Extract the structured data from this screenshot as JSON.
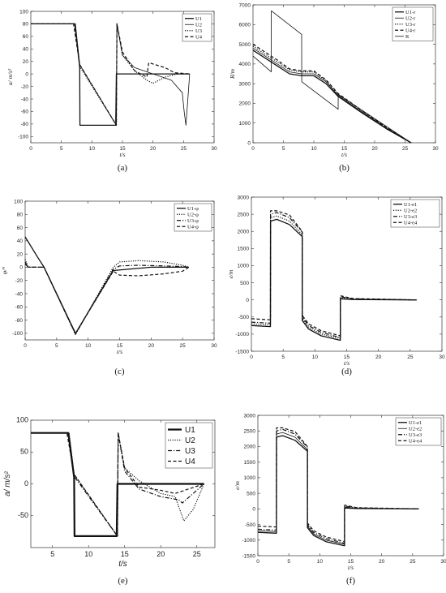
{
  "chart_data": [
    {
      "id": "a",
      "type": "line",
      "caption": "(a)",
      "xlabel": "t/s",
      "ylabel": "a/ m/s²",
      "xlim": [
        0,
        30
      ],
      "ylim": [
        -110,
        100
      ],
      "xticks": [
        0,
        5,
        10,
        15,
        20,
        25,
        30
      ],
      "yticks": [
        -100,
        -80,
        -60,
        -40,
        -20,
        0,
        20,
        40,
        60,
        80,
        100
      ],
      "legend": {
        "position": "top-right",
        "entries": [
          "U1",
          "U2",
          "U3",
          "U4"
        ]
      },
      "series": [
        {
          "name": "U1",
          "style": "solid",
          "x": [
            0,
            7.2,
            7.9,
            8.0,
            8.05,
            13.9,
            14.0,
            14.05,
            26
          ],
          "y": [
            80,
            80,
            20,
            10,
            -82,
            -82,
            0,
            0,
            0
          ]
        },
        {
          "name": "U2",
          "style": "solid-thin",
          "x": [
            0,
            7.3,
            8.0,
            14.0,
            14.1,
            15,
            17,
            20,
            23,
            24.8,
            25.1,
            25.4,
            26
          ],
          "y": [
            80,
            80,
            15,
            -82,
            80,
            30,
            10,
            0,
            -10,
            -30,
            -60,
            -82,
            0
          ]
        },
        {
          "name": "U3",
          "style": "dotted",
          "x": [
            0,
            7.2,
            8.0,
            14.0,
            14.1,
            15,
            17,
            19,
            20,
            22,
            24,
            26
          ],
          "y": [
            80,
            80,
            12,
            -82,
            80,
            30,
            5,
            -10,
            -15,
            -5,
            0,
            0
          ]
        },
        {
          "name": "U4",
          "style": "dashed",
          "x": [
            0,
            7.0,
            8.0,
            14.0,
            14.1,
            15,
            17,
            19,
            19.3,
            22,
            23.5,
            26
          ],
          "y": [
            80,
            80,
            15,
            -82,
            80,
            35,
            5,
            -5,
            18,
            10,
            2,
            0
          ]
        }
      ]
    },
    {
      "id": "b",
      "type": "line",
      "caption": "(b)",
      "xlabel": "t/s",
      "ylabel": "R/m",
      "xlim": [
        0,
        30
      ],
      "ylim": [
        0,
        7000
      ],
      "xticks": [
        0,
        5,
        10,
        15,
        20,
        25,
        30
      ],
      "yticks": [
        0,
        1000,
        2000,
        3000,
        4000,
        5000,
        6000,
        7000
      ],
      "legend": {
        "position": "top-right",
        "entries": [
          "U1-r",
          "U2-r",
          "U3-r",
          "U4-r",
          "R"
        ]
      },
      "series": [
        {
          "name": "U1-r",
          "style": "solid",
          "x": [
            0,
            2,
            4,
            6,
            8,
            10,
            12,
            14,
            18,
            22,
            26
          ],
          "y": [
            4700,
            4300,
            3900,
            3500,
            3400,
            3400,
            3000,
            2350,
            1500,
            700,
            0
          ]
        },
        {
          "name": "U2-r",
          "style": "solid-thin",
          "x": [
            0,
            2,
            4,
            6,
            8,
            10,
            12,
            14,
            18,
            22,
            26
          ],
          "y": [
            4800,
            4400,
            4000,
            3600,
            3500,
            3500,
            3100,
            2400,
            1550,
            720,
            0
          ]
        },
        {
          "name": "U3-r",
          "style": "dotted",
          "x": [
            0,
            2,
            4,
            6,
            8,
            10,
            12,
            14,
            18,
            22,
            26
          ],
          "y": [
            4900,
            4500,
            4100,
            3700,
            3600,
            3600,
            3150,
            2450,
            1600,
            750,
            0
          ]
        },
        {
          "name": "U4-r",
          "style": "dashed",
          "x": [
            0,
            2,
            4,
            6,
            8,
            10,
            12,
            14,
            18,
            22,
            26
          ],
          "y": [
            5000,
            4600,
            4200,
            3750,
            3650,
            3650,
            3200,
            2500,
            1620,
            760,
            0
          ]
        },
        {
          "name": "R",
          "style": "solid-thin",
          "x": [
            0,
            3,
            3.01,
            8,
            8.01,
            14,
            14.01,
            26
          ],
          "y": [
            4400,
            3600,
            6700,
            5500,
            3100,
            1700,
            2450,
            0
          ]
        }
      ]
    },
    {
      "id": "c",
      "type": "line",
      "caption": "(c)",
      "xlabel": "t/s",
      "ylabel": "φ/°",
      "xlim": [
        0,
        30
      ],
      "ylim": [
        -110,
        100
      ],
      "xticks": [
        0,
        5,
        10,
        15,
        20,
        25,
        30
      ],
      "yticks": [
        -100,
        -80,
        -60,
        -40,
        -20,
        0,
        20,
        40,
        60,
        80,
        100
      ],
      "legend": {
        "position": "top-right",
        "entries": [
          "U1-φ",
          "U2-φ",
          "U3-φ",
          "U4-φ"
        ]
      },
      "series": [
        {
          "name": "U1-φ",
          "style": "solid",
          "x": [
            0,
            2,
            3,
            8,
            14,
            20,
            26
          ],
          "y": [
            46,
            15,
            0,
            -100,
            -5,
            0,
            0
          ]
        },
        {
          "name": "U2-φ",
          "style": "dotted",
          "x": [
            0,
            0.5,
            3,
            8,
            14,
            15,
            18,
            22,
            25,
            26
          ],
          "y": [
            12,
            0,
            0,
            -102,
            0,
            8,
            10,
            8,
            3,
            0
          ]
        },
        {
          "name": "U3-φ",
          "style": "dashdot",
          "x": [
            0,
            0.5,
            3,
            8,
            14,
            15,
            18,
            22,
            25,
            26
          ],
          "y": [
            5,
            0,
            0,
            -101,
            -3,
            2,
            3,
            2,
            1,
            0
          ]
        },
        {
          "name": "U4-φ",
          "style": "dashed",
          "x": [
            0,
            0.5,
            3,
            8,
            14,
            15,
            18,
            22,
            25,
            26
          ],
          "y": [
            8,
            0,
            0,
            -100,
            -6,
            -12,
            -13,
            -10,
            -6,
            0
          ]
        }
      ]
    },
    {
      "id": "d",
      "type": "line",
      "caption": "(d)",
      "xlabel": "t/s",
      "ylabel": "e/m",
      "xlim": [
        0,
        30
      ],
      "ylim": [
        -1500,
        3000
      ],
      "xticks": [
        0,
        5,
        10,
        15,
        20,
        25,
        30
      ],
      "yticks": [
        -1500,
        -1000,
        -500,
        0,
        500,
        1000,
        1500,
        2000,
        2500,
        3000
      ],
      "legend": {
        "position": "top-right",
        "entries": [
          "U1-e1",
          "U2-e2",
          "U3-e3",
          "U4-e4"
        ]
      },
      "series": [
        {
          "name": "U1-e1",
          "style": "solid",
          "x": [
            0,
            3,
            3.01,
            4,
            6,
            8,
            8.01,
            9,
            11,
            14,
            14.01,
            16,
            26
          ],
          "y": [
            -750,
            -780,
            2300,
            2350,
            2200,
            1850,
            -600,
            -850,
            -1050,
            -1180,
            30,
            10,
            0
          ]
        },
        {
          "name": "U2-e2",
          "style": "dotted",
          "x": [
            0,
            3,
            3.01,
            4,
            6,
            8,
            8.01,
            9,
            11,
            14,
            14.01,
            16,
            26
          ],
          "y": [
            -700,
            -730,
            2400,
            2450,
            2300,
            1900,
            -550,
            -800,
            -1000,
            -1130,
            60,
            20,
            0
          ]
        },
        {
          "name": "U3-e3",
          "style": "dashdot",
          "x": [
            0,
            3,
            3.01,
            4,
            6,
            8,
            8.01,
            9,
            11,
            14,
            14.01,
            16,
            26
          ],
          "y": [
            -650,
            -680,
            2500,
            2550,
            2400,
            1980,
            -500,
            -750,
            -950,
            -1100,
            90,
            30,
            0
          ]
        },
        {
          "name": "U4-e4",
          "style": "dashed",
          "x": [
            0,
            3,
            3.01,
            4,
            6,
            8,
            8.01,
            9,
            11,
            14,
            14.01,
            16,
            26
          ],
          "y": [
            -550,
            -580,
            2600,
            2600,
            2480,
            2000,
            -450,
            -700,
            -900,
            -1050,
            120,
            40,
            0
          ]
        }
      ]
    },
    {
      "id": "e",
      "type": "line",
      "caption": "(e)",
      "xlabel": "t/s",
      "ylabel": "a/ m/s²",
      "xlim": [
        2,
        27.5
      ],
      "ylim": [
        -100,
        100
      ],
      "xticks": [
        5,
        10,
        15,
        20,
        25
      ],
      "yticks": [
        -50,
        0,
        50,
        100
      ],
      "legend": {
        "position": "top-right",
        "entries": [
          "U1",
          "U2",
          "U3",
          "U4"
        ]
      },
      "series": [
        {
          "name": "U1",
          "style": "solid-bold",
          "x": [
            2,
            7.2,
            8.0,
            8.05,
            13.9,
            14.0,
            14.05,
            26
          ],
          "y": [
            80,
            80,
            10,
            -82,
            -82,
            0,
            0,
            0
          ]
        },
        {
          "name": "U2",
          "style": "dotted",
          "x": [
            2,
            7.3,
            8.0,
            14.0,
            14.1,
            15,
            17,
            20,
            22,
            23.2,
            24.5,
            26
          ],
          "y": [
            80,
            80,
            15,
            -82,
            80,
            25,
            5,
            -15,
            -20,
            -58,
            -40,
            0
          ]
        },
        {
          "name": "U3",
          "style": "dashdot",
          "x": [
            2,
            7.2,
            8.0,
            14.0,
            14.1,
            15,
            17,
            20,
            22.5,
            23,
            26
          ],
          "y": [
            80,
            80,
            12,
            -82,
            80,
            20,
            -8,
            -20,
            -25,
            -30,
            0
          ]
        },
        {
          "name": "U4",
          "style": "dashed",
          "x": [
            2,
            7.0,
            8.0,
            14.0,
            14.1,
            15,
            17,
            20,
            22,
            26
          ],
          "y": [
            80,
            80,
            15,
            -82,
            80,
            25,
            -5,
            -10,
            -15,
            0
          ]
        }
      ]
    },
    {
      "id": "f",
      "type": "line",
      "caption": "(f)",
      "xlabel": "t/s",
      "ylabel": "e/m",
      "xlim": [
        0,
        30
      ],
      "ylim": [
        -1500,
        3000
      ],
      "xticks": [
        0,
        5,
        10,
        15,
        20,
        25,
        30
      ],
      "yticks": [
        -1500,
        -1000,
        -500,
        0,
        500,
        1000,
        1500,
        2000,
        2500,
        3000
      ],
      "legend": {
        "position": "top-right",
        "entries": [
          "U1-e1",
          "U2-e2",
          "U3-e3",
          "U4-e4"
        ]
      },
      "series": [
        {
          "name": "U1-e1",
          "style": "solid",
          "x": [
            0,
            3,
            3.01,
            4,
            6,
            8,
            8.01,
            9,
            11,
            14,
            14.01,
            16,
            26
          ],
          "y": [
            -750,
            -780,
            2300,
            2350,
            2200,
            1850,
            -600,
            -850,
            -1050,
            -1180,
            30,
            10,
            0
          ]
        },
        {
          "name": "U2-e2",
          "style": "solid-thin",
          "x": [
            0,
            3,
            3.01,
            4,
            6,
            8,
            8.01,
            9,
            11,
            14,
            14.01,
            16,
            26
          ],
          "y": [
            -700,
            -730,
            2400,
            2450,
            2300,
            1900,
            -550,
            -800,
            -1000,
            -1130,
            60,
            20,
            0
          ]
        },
        {
          "name": "U3-e3",
          "style": "dashdot",
          "x": [
            0,
            3,
            3.01,
            4,
            6,
            8,
            8.01,
            9,
            11,
            14,
            14.01,
            16,
            26
          ],
          "y": [
            -650,
            -680,
            2500,
            2550,
            2400,
            1980,
            -500,
            -750,
            -950,
            -1100,
            90,
            30,
            0
          ]
        },
        {
          "name": "U4-e4",
          "style": "dashed",
          "x": [
            0,
            3,
            3.01,
            4,
            6,
            8,
            8.01,
            9,
            11,
            14,
            14.01,
            16,
            26
          ],
          "y": [
            -550,
            -580,
            2600,
            2600,
            2480,
            2000,
            -450,
            -700,
            -900,
            -1050,
            120,
            40,
            0
          ]
        }
      ]
    }
  ]
}
